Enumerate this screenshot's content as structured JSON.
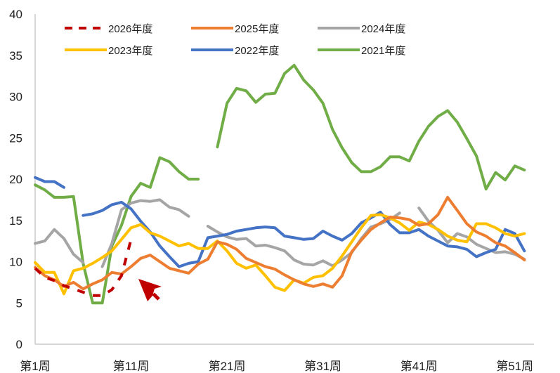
{
  "chart_data": {
    "type": "line",
    "x_ticks": [
      "第1周",
      "第11周",
      "第21周",
      "第31周",
      "第41周",
      "第51周"
    ],
    "x_tick_weeks": [
      1,
      11,
      21,
      31,
      41,
      51
    ],
    "xlim": [
      1,
      53
    ],
    "ylim": [
      0,
      40
    ],
    "y_ticks": [
      "0",
      "5",
      "10",
      "15",
      "20",
      "25",
      "30",
      "35",
      "40"
    ],
    "y_tick_values": [
      0,
      5,
      10,
      15,
      20,
      25,
      30,
      35,
      40
    ],
    "grid": false,
    "legend_position": "top",
    "series": [
      {
        "name": "2026年度",
        "color": "#c00000",
        "dash": true,
        "points": [
          [
            1,
            9.2
          ],
          [
            2,
            8.1
          ],
          [
            3,
            7.7
          ],
          [
            4,
            7.1
          ],
          [
            5,
            6.7
          ],
          [
            6,
            6.3
          ],
          [
            7,
            5.9
          ],
          [
            8,
            5.9
          ],
          [
            9,
            6.6
          ],
          [
            10,
            8.3
          ],
          [
            11,
            12.7
          ]
        ]
      },
      {
        "name": "2025年度",
        "color": "#ed7d31",
        "dash": false,
        "points": [
          [
            1,
            9.3
          ],
          [
            2,
            8.3
          ],
          [
            3,
            7.8
          ],
          [
            4,
            7.0
          ],
          [
            5,
            7.5
          ],
          [
            6,
            6.7
          ],
          [
            7,
            7.3
          ],
          [
            8,
            7.8
          ],
          [
            9,
            8.7
          ],
          [
            10,
            8.5
          ],
          [
            11,
            9.4
          ],
          [
            12,
            10.4
          ],
          [
            13,
            10.8
          ],
          [
            14,
            10.0
          ],
          [
            15,
            9.2
          ],
          [
            16,
            8.9
          ],
          [
            17,
            8.6
          ],
          [
            18,
            9.7
          ],
          [
            19,
            10.3
          ],
          [
            20,
            12.4
          ],
          [
            21,
            12.1
          ],
          [
            22,
            11.5
          ],
          [
            23,
            10.4
          ],
          [
            24,
            9.9
          ],
          [
            25,
            9.4
          ],
          [
            26,
            9.1
          ],
          [
            27,
            8.4
          ],
          [
            28,
            7.8
          ],
          [
            29,
            7.3
          ],
          [
            30,
            7.0
          ],
          [
            31,
            7.3
          ],
          [
            32,
            6.9
          ],
          [
            33,
            8.3
          ],
          [
            34,
            11.2
          ],
          [
            35,
            12.6
          ],
          [
            36,
            13.9
          ],
          [
            37,
            14.7
          ],
          [
            38,
            15.4
          ],
          [
            39,
            15.3
          ],
          [
            40,
            15.1
          ],
          [
            41,
            14.4
          ],
          [
            42,
            14.6
          ],
          [
            43,
            15.7
          ],
          [
            44,
            17.8
          ],
          [
            45,
            16.2
          ],
          [
            46,
            14.6
          ],
          [
            47,
            13.6
          ],
          [
            48,
            13.1
          ],
          [
            49,
            12.3
          ],
          [
            50,
            11.9
          ],
          [
            51,
            11.1
          ],
          [
            52,
            10.2
          ]
        ]
      },
      {
        "name": "2024年度",
        "color": "#a5a5a5",
        "dash": false,
        "points": [
          [
            1,
            12.2
          ],
          [
            2,
            12.5
          ],
          [
            3,
            13.9
          ],
          [
            4,
            12.8
          ],
          [
            5,
            10.9
          ],
          [
            6,
            9.9
          ],
          [
            7,
            null
          ],
          [
            8,
            9.4
          ],
          [
            9,
            12.2
          ],
          [
            10,
            16.3
          ],
          [
            11,
            17.1
          ],
          [
            12,
            17.4
          ],
          [
            13,
            17.3
          ],
          [
            14,
            17.5
          ],
          [
            15,
            16.6
          ],
          [
            16,
            16.3
          ],
          [
            17,
            15.5
          ],
          [
            18,
            null
          ],
          [
            19,
            14.3
          ],
          [
            20,
            13.6
          ],
          [
            21,
            13.0
          ],
          [
            22,
            12.7
          ],
          [
            23,
            12.8
          ],
          [
            24,
            11.9
          ],
          [
            25,
            12.0
          ],
          [
            26,
            11.7
          ],
          [
            27,
            11.3
          ],
          [
            28,
            10.2
          ],
          [
            29,
            9.7
          ],
          [
            30,
            9.6
          ],
          [
            31,
            10.1
          ],
          [
            32,
            9.5
          ],
          [
            33,
            10.2
          ],
          [
            34,
            11.1
          ],
          [
            35,
            12.8
          ],
          [
            36,
            14.2
          ],
          [
            37,
            14.6
          ],
          [
            38,
            15.1
          ],
          [
            39,
            15.9
          ],
          [
            40,
            null
          ],
          [
            41,
            16.5
          ],
          [
            42,
            14.9
          ],
          [
            43,
            13.8
          ],
          [
            44,
            12.3
          ],
          [
            45,
            13.4
          ],
          [
            46,
            13.0
          ],
          [
            47,
            12.1
          ],
          [
            48,
            11.6
          ],
          [
            49,
            11.1
          ],
          [
            50,
            11.2
          ],
          [
            51,
            10.9
          ],
          [
            52,
            10.3
          ]
        ]
      },
      {
        "name": "2023年度",
        "color": "#ffc000",
        "dash": false,
        "points": [
          [
            1,
            9.9
          ],
          [
            2,
            8.7
          ],
          [
            3,
            8.7
          ],
          [
            4,
            6.1
          ],
          [
            5,
            8.9
          ],
          [
            6,
            9.2
          ],
          [
            7,
            9.8
          ],
          [
            8,
            10.5
          ],
          [
            9,
            11.3
          ],
          [
            10,
            12.7
          ],
          [
            11,
            14.1
          ],
          [
            12,
            14.5
          ],
          [
            13,
            13.5
          ],
          [
            14,
            13.1
          ],
          [
            15,
            12.5
          ],
          [
            16,
            11.9
          ],
          [
            17,
            12.2
          ],
          [
            18,
            11.6
          ],
          [
            19,
            11.6
          ],
          [
            20,
            12.5
          ],
          [
            21,
            11.3
          ],
          [
            22,
            9.8
          ],
          [
            23,
            9.2
          ],
          [
            24,
            9.6
          ],
          [
            25,
            8.3
          ],
          [
            26,
            6.9
          ],
          [
            27,
            6.5
          ],
          [
            28,
            7.8
          ],
          [
            29,
            7.4
          ],
          [
            30,
            8.1
          ],
          [
            31,
            8.3
          ],
          [
            32,
            9.2
          ],
          [
            33,
            10.7
          ],
          [
            34,
            12.4
          ],
          [
            35,
            14.1
          ],
          [
            36,
            15.6
          ],
          [
            37,
            15.7
          ],
          [
            38,
            15.3
          ],
          [
            39,
            14.7
          ],
          [
            40,
            13.8
          ],
          [
            41,
            14.8
          ],
          [
            42,
            14.5
          ],
          [
            43,
            13.9
          ],
          [
            44,
            13.1
          ],
          [
            45,
            12.6
          ],
          [
            46,
            12.4
          ],
          [
            47,
            14.6
          ],
          [
            48,
            14.6
          ],
          [
            49,
            14.1
          ],
          [
            50,
            13.4
          ],
          [
            51,
            13.1
          ],
          [
            52,
            13.4
          ]
        ]
      },
      {
        "name": "2022年度",
        "color": "#4472c4",
        "dash": false,
        "points": [
          [
            1,
            20.2
          ],
          [
            2,
            19.7
          ],
          [
            3,
            19.7
          ],
          [
            4,
            19.0
          ],
          [
            5,
            null
          ],
          [
            6,
            15.6
          ],
          [
            7,
            15.8
          ],
          [
            8,
            16.2
          ],
          [
            9,
            16.9
          ],
          [
            10,
            17.2
          ],
          [
            11,
            16.4
          ],
          [
            12,
            14.9
          ],
          [
            13,
            13.6
          ],
          [
            14,
            11.9
          ],
          [
            15,
            10.6
          ],
          [
            16,
            9.4
          ],
          [
            17,
            9.8
          ],
          [
            18,
            10.0
          ],
          [
            19,
            12.9
          ],
          [
            20,
            13.1
          ],
          [
            21,
            13.3
          ],
          [
            22,
            13.7
          ],
          [
            23,
            13.9
          ],
          [
            24,
            14.1
          ],
          [
            25,
            14.2
          ],
          [
            26,
            14.1
          ],
          [
            27,
            13.1
          ],
          [
            28,
            12.9
          ],
          [
            29,
            12.7
          ],
          [
            30,
            12.8
          ],
          [
            31,
            13.7
          ],
          [
            32,
            13.1
          ],
          [
            33,
            12.6
          ],
          [
            34,
            13.4
          ],
          [
            35,
            14.7
          ],
          [
            36,
            15.3
          ],
          [
            37,
            16.0
          ],
          [
            38,
            14.5
          ],
          [
            39,
            13.5
          ],
          [
            40,
            13.5
          ],
          [
            41,
            13.9
          ],
          [
            42,
            13.1
          ],
          [
            43,
            12.5
          ],
          [
            44,
            11.9
          ],
          [
            45,
            11.8
          ],
          [
            46,
            11.5
          ],
          [
            47,
            10.6
          ],
          [
            48,
            11.1
          ],
          [
            49,
            11.5
          ],
          [
            50,
            13.9
          ],
          [
            51,
            13.4
          ],
          [
            52,
            11.3
          ]
        ]
      },
      {
        "name": "2021年度",
        "color": "#70ad47",
        "dash": false,
        "points": [
          [
            1,
            19.3
          ],
          [
            2,
            18.7
          ],
          [
            3,
            17.8
          ],
          [
            4,
            17.8
          ],
          [
            5,
            17.9
          ],
          [
            6,
            9.8
          ],
          [
            7,
            5.0
          ],
          [
            8,
            5.0
          ],
          [
            9,
            11.9
          ],
          [
            10,
            14.4
          ],
          [
            11,
            17.9
          ],
          [
            12,
            19.5
          ],
          [
            13,
            19.0
          ],
          [
            14,
            22.6
          ],
          [
            15,
            22.1
          ],
          [
            16,
            20.9
          ],
          [
            17,
            20.0
          ],
          [
            18,
            20.0
          ],
          [
            19,
            null
          ],
          [
            20,
            23.9
          ],
          [
            21,
            29.2
          ],
          [
            22,
            31.0
          ],
          [
            23,
            30.7
          ],
          [
            24,
            29.3
          ],
          [
            25,
            30.3
          ],
          [
            26,
            30.4
          ],
          [
            27,
            32.8
          ],
          [
            28,
            33.8
          ],
          [
            29,
            32.0
          ],
          [
            30,
            30.8
          ],
          [
            31,
            29.2
          ],
          [
            32,
            26.0
          ],
          [
            33,
            23.8
          ],
          [
            34,
            22.0
          ],
          [
            35,
            20.9
          ],
          [
            36,
            20.9
          ],
          [
            37,
            21.5
          ],
          [
            38,
            22.7
          ],
          [
            39,
            22.7
          ],
          [
            40,
            22.2
          ],
          [
            41,
            24.6
          ],
          [
            42,
            26.4
          ],
          [
            43,
            27.6
          ],
          [
            44,
            28.3
          ],
          [
            45,
            26.9
          ],
          [
            46,
            24.9
          ],
          [
            47,
            22.8
          ],
          [
            48,
            18.8
          ],
          [
            49,
            20.8
          ],
          [
            50,
            19.9
          ],
          [
            51,
            21.6
          ],
          [
            52,
            21.1
          ]
        ]
      }
    ],
    "annotations": [
      {
        "type": "arrow",
        "color": "#c00000",
        "description": ""
      }
    ]
  }
}
